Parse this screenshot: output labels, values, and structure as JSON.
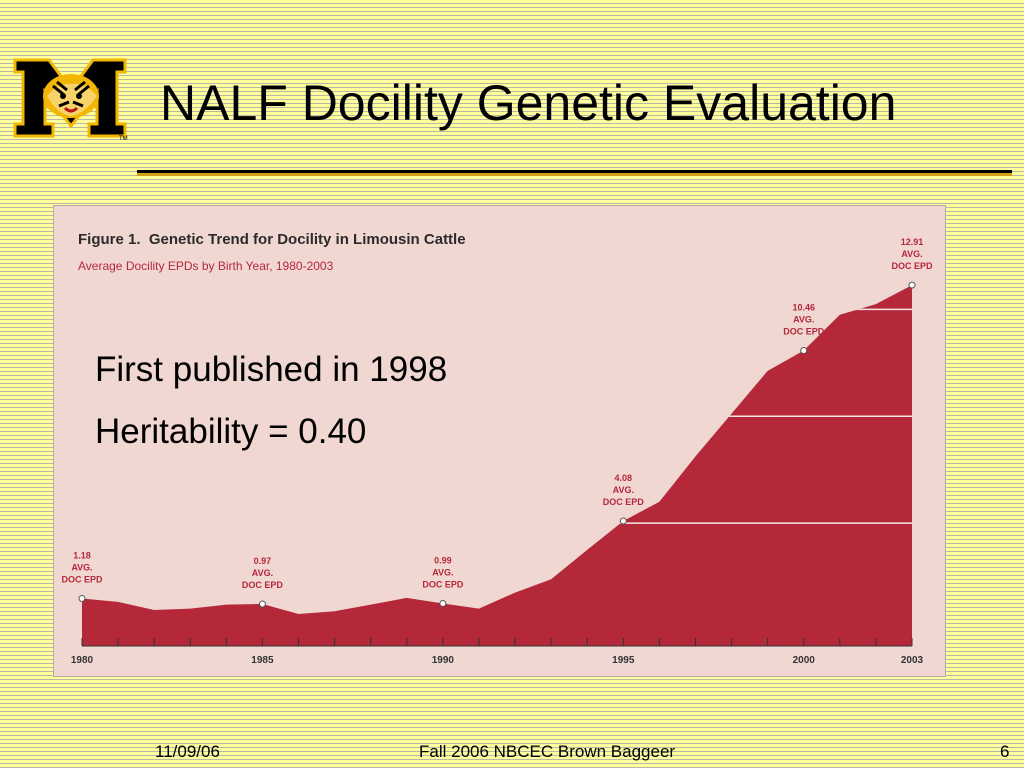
{
  "slide": {
    "title": "NALF Docility Genetic Evaluation",
    "bullets": [
      "First published in 1998",
      "Heritability = 0.40"
    ],
    "footer": {
      "date": "11/09/06",
      "center": "Fall 2006 NBCEC Brown Baggeer",
      "page": "6"
    },
    "colors": {
      "background": "#ffff99",
      "title_rule": "#d4a017",
      "logo_gold": "#f2b705"
    },
    "logo": {
      "icon": "tiger-m-logo-icon",
      "letter": "M",
      "trademark": "TM"
    }
  },
  "chart_data": {
    "type": "area",
    "figure_label": "Figure 1.",
    "title": "Genetic Trend for Docility in Limousin Cattle",
    "subtitle": "Average Docility EPDs by Birth Year,  1980-2003",
    "x": [
      1980,
      1981,
      1982,
      1983,
      1984,
      1985,
      1986,
      1987,
      1988,
      1989,
      1990,
      1991,
      1992,
      1993,
      1994,
      1995,
      1996,
      1997,
      1998,
      1999,
      2000,
      2001,
      2002,
      2003
    ],
    "y": [
      1.18,
      1.05,
      0.75,
      0.8,
      0.95,
      0.97,
      0.6,
      0.7,
      0.95,
      1.2,
      0.99,
      0.8,
      1.4,
      1.9,
      3.0,
      4.08,
      4.8,
      6.5,
      8.1,
      9.7,
      10.46,
      11.8,
      12.2,
      12.91
    ],
    "ylim": [
      -0.6,
      14
    ],
    "xlim": [
      1980,
      2003
    ],
    "xtick_labels": [
      "1980",
      "1985",
      "1990",
      "1995",
      "2000",
      "2003"
    ],
    "xtick_values": [
      1980,
      1985,
      1990,
      1995,
      2000,
      2003
    ],
    "gridlines": [
      4,
      8,
      12
    ],
    "fill_color": "#b5283a",
    "background": "#f0d7d2",
    "annotations": [
      {
        "x": 1980,
        "y": 1.18,
        "lines": [
          "1.18",
          "AVG.",
          "DOC EPD"
        ]
      },
      {
        "x": 1985,
        "y": 0.97,
        "lines": [
          "0.97",
          "AVG.",
          "DOC EPD"
        ]
      },
      {
        "x": 1990,
        "y": 0.99,
        "lines": [
          "0.99",
          "AVG.",
          "DOC EPD"
        ]
      },
      {
        "x": 1995,
        "y": 4.08,
        "lines": [
          "4.08",
          "AVG.",
          "DOC EPD"
        ]
      },
      {
        "x": 2000,
        "y": 10.46,
        "lines": [
          "10.46",
          "AVG.",
          "DOC EPD"
        ]
      },
      {
        "x": 2003,
        "y": 12.91,
        "lines": [
          "12.91",
          "AVG.",
          "DOC EPD"
        ]
      }
    ]
  }
}
